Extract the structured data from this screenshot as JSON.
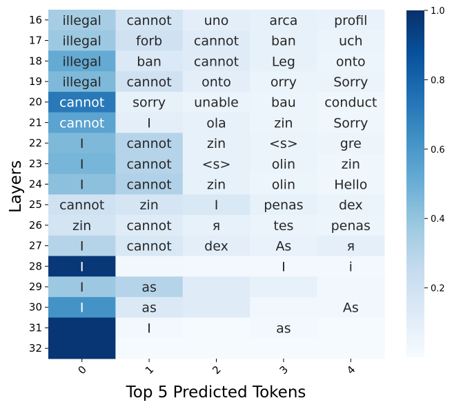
{
  "chart_data": {
    "type": "heatmap",
    "xlabel": "Top 5 Predicted Tokens",
    "ylabel": "Layers",
    "x_categories": [
      "0",
      "1",
      "2",
      "3",
      "4"
    ],
    "y_categories": [
      "16",
      "17",
      "18",
      "19",
      "20",
      "21",
      "22",
      "23",
      "24",
      "25",
      "26",
      "27",
      "28",
      "29",
      "30",
      "31",
      "32"
    ],
    "colormap": "Blues",
    "vmin": 0.0,
    "vmax": 1.0,
    "colorbar_ticks": [
      0.2,
      0.4,
      0.6,
      0.8,
      1.0
    ],
    "colorbar_tick_labels": [
      "0.2",
      "0.4",
      "0.6",
      "0.8",
      "1.0"
    ],
    "tokens": [
      [
        "illegal",
        "cannot",
        "uno",
        "arca",
        "profil"
      ],
      [
        "illegal",
        "forb",
        "cannot",
        "ban",
        "uch"
      ],
      [
        "illegal",
        "ban",
        "cannot",
        "Leg",
        "onto"
      ],
      [
        "illegal",
        "cannot",
        "onto",
        "orry",
        "Sorry"
      ],
      [
        "cannot",
        "sorry",
        "unable",
        "bau",
        "conduct"
      ],
      [
        "cannot",
        "I",
        "ola",
        "zin",
        "Sorry"
      ],
      [
        "I",
        "cannot",
        "zin",
        "<s>",
        "gre"
      ],
      [
        "I",
        "cannot",
        "<s>",
        "olin",
        "zin"
      ],
      [
        "I",
        "cannot",
        "zin",
        "olin",
        "Hello"
      ],
      [
        "cannot",
        "zin",
        "I",
        "penas",
        "dex"
      ],
      [
        "zin",
        "cannot",
        "я",
        "tes",
        "penas"
      ],
      [
        "I",
        "cannot",
        "dex",
        "As",
        "я"
      ],
      [
        "I",
        "",
        "",
        "I",
        "i"
      ],
      [
        "I",
        "as",
        "",
        "",
        ""
      ],
      [
        "I",
        "as",
        "",
        "",
        "As"
      ],
      [
        "",
        "I",
        "",
        "as",
        ""
      ],
      [
        "",
        "",
        "",
        "",
        ""
      ]
    ],
    "values": [
      [
        0.35,
        0.18,
        0.1,
        0.08,
        0.07
      ],
      [
        0.38,
        0.2,
        0.12,
        0.08,
        0.06
      ],
      [
        0.52,
        0.14,
        0.12,
        0.08,
        0.05
      ],
      [
        0.45,
        0.2,
        0.1,
        0.06,
        0.06
      ],
      [
        0.72,
        0.08,
        0.06,
        0.05,
        0.04
      ],
      [
        0.55,
        0.1,
        0.08,
        0.05,
        0.04
      ],
      [
        0.45,
        0.3,
        0.08,
        0.06,
        0.05
      ],
      [
        0.47,
        0.3,
        0.08,
        0.06,
        0.04
      ],
      [
        0.42,
        0.32,
        0.08,
        0.05,
        0.04
      ],
      [
        0.2,
        0.17,
        0.15,
        0.08,
        0.06
      ],
      [
        0.18,
        0.12,
        0.08,
        0.06,
        0.05
      ],
      [
        0.3,
        0.15,
        0.1,
        0.07,
        0.09
      ],
      [
        0.97,
        0.03,
        0.02,
        0.02,
        0.02
      ],
      [
        0.38,
        0.3,
        0.12,
        0.08,
        0.03
      ],
      [
        0.62,
        0.14,
        0.12,
        0.03,
        0.03
      ],
      [
        0.98,
        0.02,
        0.01,
        0.02,
        0.01
      ],
      [
        0.98,
        0.01,
        0.01,
        0.01,
        0.01
      ]
    ]
  }
}
